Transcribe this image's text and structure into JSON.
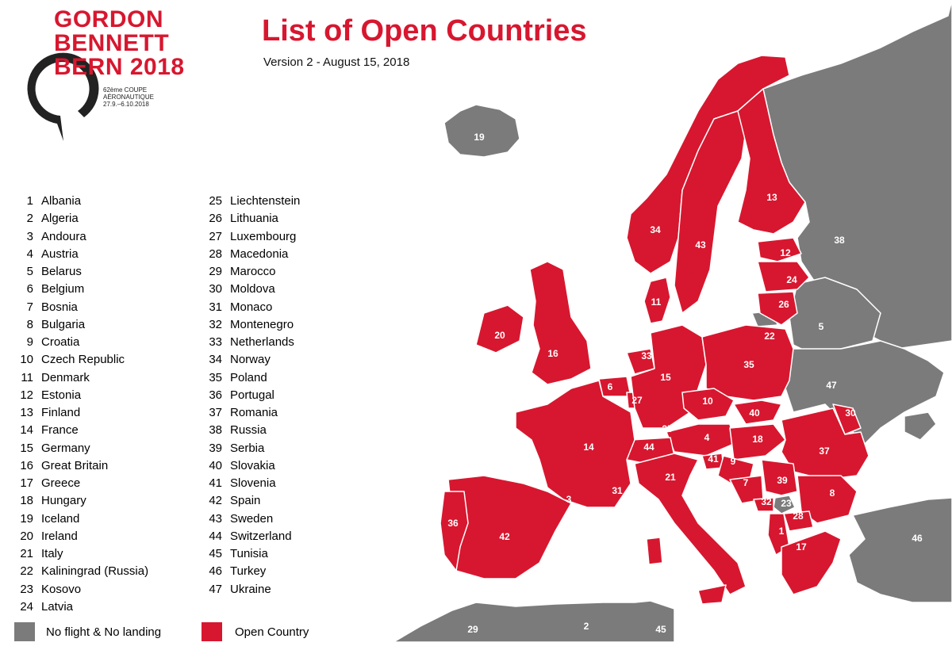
{
  "logo": {
    "lines": [
      "GORDON",
      "BENNETT",
      "BERN 2018"
    ],
    "sub": [
      "62ème COUPE",
      "AÉRONAUTIQUE",
      "27.9.–6.10.2018"
    ]
  },
  "title": "List of Open Countries",
  "subtitle": "Version 2 - August 15, 2018",
  "countries": [
    {
      "num": "1",
      "name": "Albania"
    },
    {
      "num": "2",
      "name": "Algeria"
    },
    {
      "num": "3",
      "name": "Andoura"
    },
    {
      "num": "4",
      "name": "Austria"
    },
    {
      "num": "5",
      "name": "Belarus"
    },
    {
      "num": "6",
      "name": "Belgium"
    },
    {
      "num": "7",
      "name": "Bosnia"
    },
    {
      "num": "8",
      "name": "Bulgaria"
    },
    {
      "num": "9",
      "name": "Croatia"
    },
    {
      "num": "10",
      "name": "Czech Republic"
    },
    {
      "num": "11",
      "name": "Denmark"
    },
    {
      "num": "12",
      "name": "Estonia"
    },
    {
      "num": "13",
      "name": "Finland"
    },
    {
      "num": "14",
      "name": "France"
    },
    {
      "num": "15",
      "name": "Germany"
    },
    {
      "num": "16",
      "name": "Great Britain"
    },
    {
      "num": "17",
      "name": "Greece"
    },
    {
      "num": "18",
      "name": "Hungary"
    },
    {
      "num": "19",
      "name": "Iceland"
    },
    {
      "num": "20",
      "name": "Ireland"
    },
    {
      "num": "21",
      "name": "Italy"
    },
    {
      "num": "22",
      "name": "Kaliningrad (Russia)"
    },
    {
      "num": "23",
      "name": "Kosovo"
    },
    {
      "num": "24",
      "name": "Latvia"
    },
    {
      "num": "25",
      "name": "Liechtenstein"
    },
    {
      "num": "26",
      "name": "Lithuania"
    },
    {
      "num": "27",
      "name": "Luxembourg"
    },
    {
      "num": "28",
      "name": "Macedonia"
    },
    {
      "num": "29",
      "name": "Marocco"
    },
    {
      "num": "30",
      "name": "Moldova"
    },
    {
      "num": "31",
      "name": "Monaco"
    },
    {
      "num": "32",
      "name": "Montenegro"
    },
    {
      "num": "33",
      "name": "Netherlands"
    },
    {
      "num": "34",
      "name": "Norway"
    },
    {
      "num": "35",
      "name": "Poland"
    },
    {
      "num": "36",
      "name": "Portugal"
    },
    {
      "num": "37",
      "name": "Romania"
    },
    {
      "num": "38",
      "name": "Russia"
    },
    {
      "num": "39",
      "name": "Serbia"
    },
    {
      "num": "40",
      "name": "Slovakia"
    },
    {
      "num": "41",
      "name": "Slovenia"
    },
    {
      "num": "42",
      "name": "Spain"
    },
    {
      "num": "43",
      "name": "Sweden"
    },
    {
      "num": "44",
      "name": "Switzerland"
    },
    {
      "num": "45",
      "name": "Tunisia"
    },
    {
      "num": "46",
      "name": "Turkey"
    },
    {
      "num": "47",
      "name": "Ukraine"
    }
  ],
  "legend": {
    "closed": {
      "label": "No flight & No landing",
      "color": "#7b7b7b"
    },
    "open": {
      "label": "Open Country",
      "color": "#d7172f"
    }
  },
  "map_labels": {
    "l1": "1",
    "l2": "2",
    "l3": "3",
    "l4": "4",
    "l5": "5",
    "l6": "6",
    "l7": "7",
    "l8": "8",
    "l9": "9",
    "l10": "10",
    "l11": "11",
    "l12": "12",
    "l13": "13",
    "l14": "14",
    "l15": "15",
    "l16": "16",
    "l17": "17",
    "l18": "18",
    "l19": "19",
    "l20": "20",
    "l21": "21",
    "l22": "22",
    "l23": "23",
    "l24": "24",
    "l25": "25",
    "l26": "26",
    "l27": "27",
    "l28": "28",
    "l29": "29",
    "l30": "30",
    "l31": "31",
    "l32": "32",
    "l33": "33",
    "l34": "34",
    "l35": "35",
    "l36": "36",
    "l37": "37",
    "l38": "38",
    "l39": "39",
    "l40": "40",
    "l41": "41",
    "l42": "42",
    "l43": "43",
    "l44": "44",
    "l45": "45",
    "l46": "46",
    "l47": "47"
  }
}
